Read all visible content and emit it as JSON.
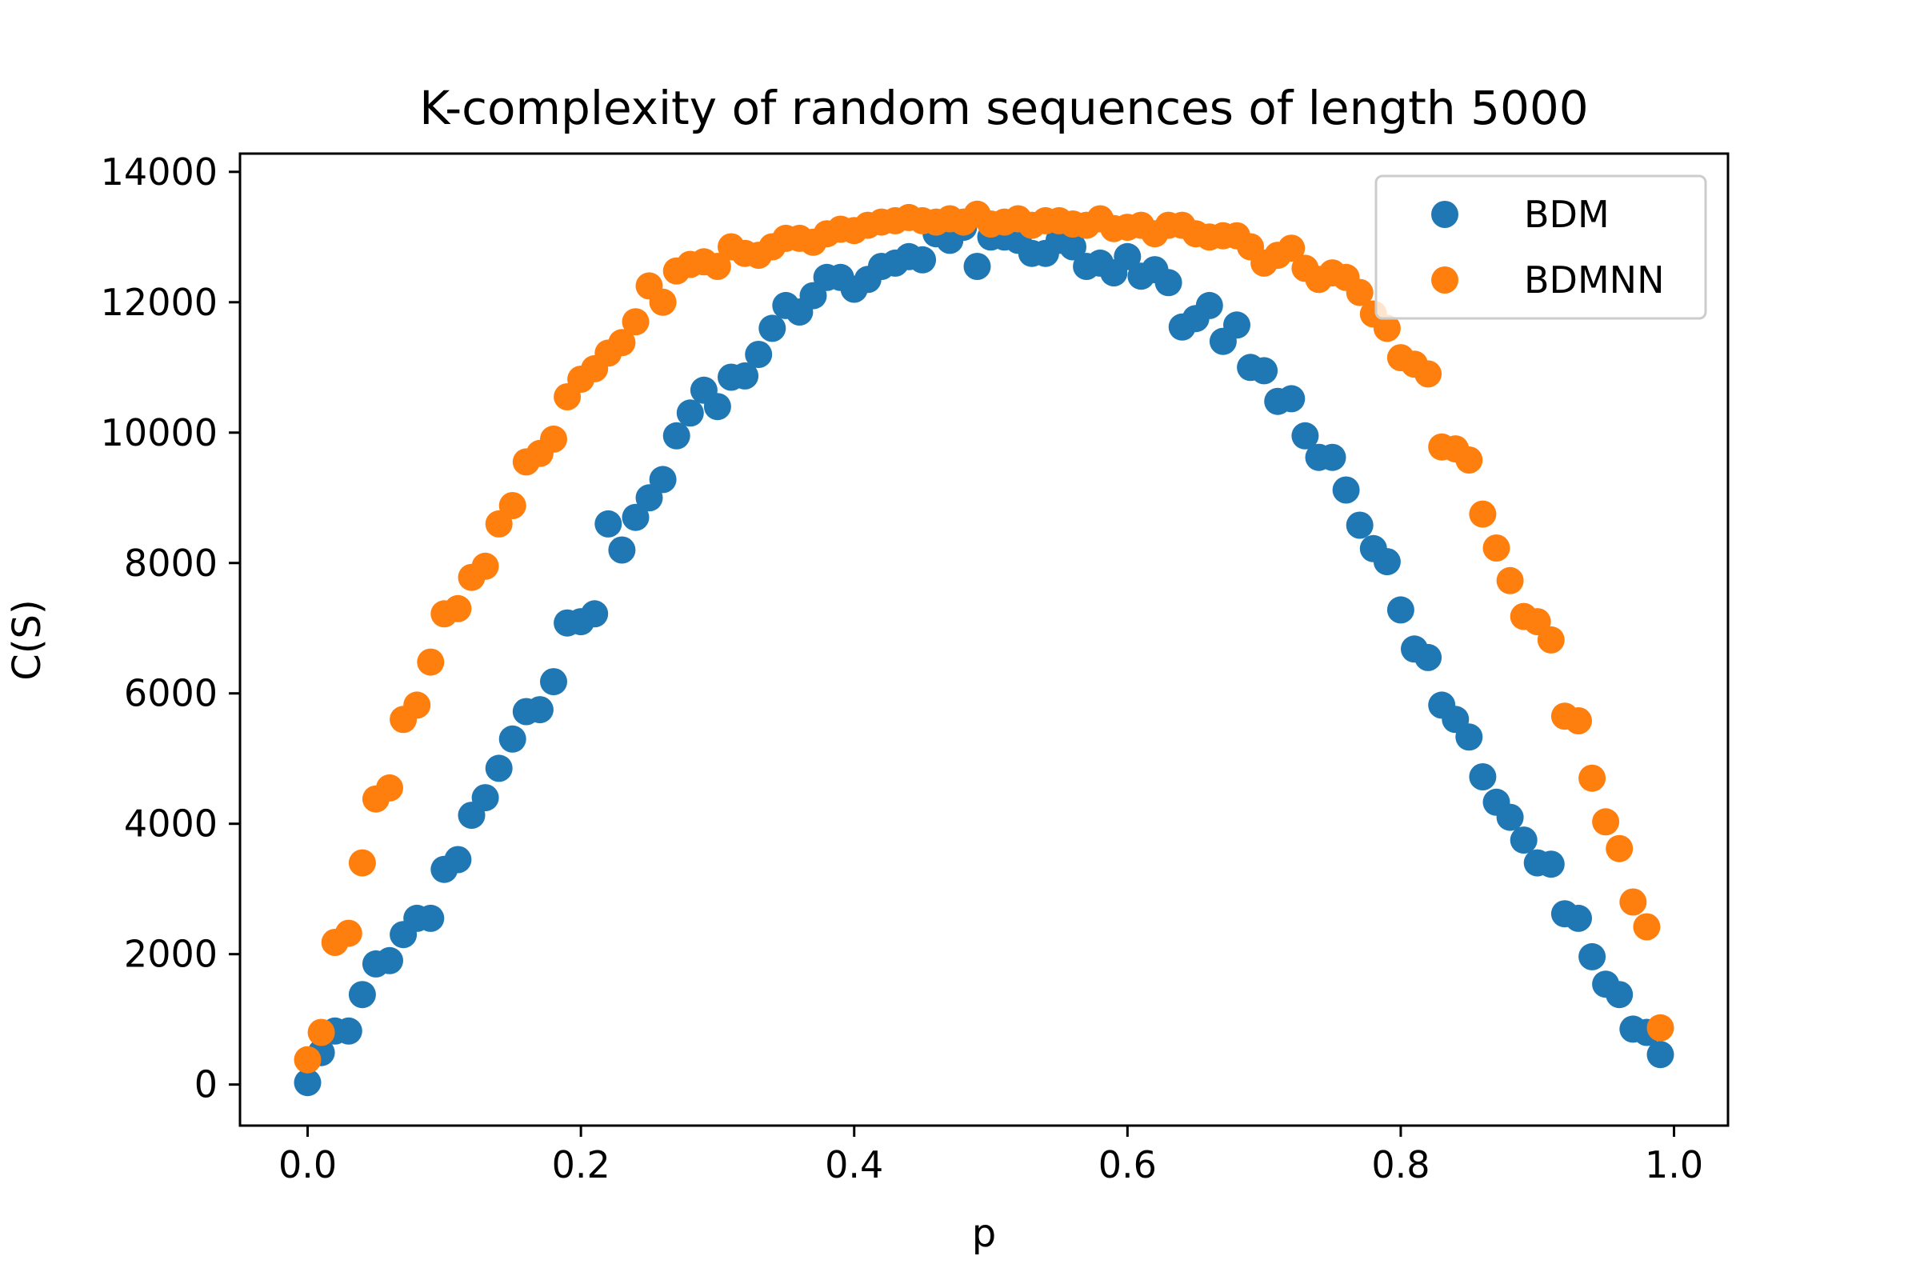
{
  "chart_data": {
    "type": "scatter",
    "title": "K-complexity of random sequences of length 5000",
    "xlabel": "p",
    "ylabel": "C(S)",
    "xlim": [
      -0.0495,
      1.0395
    ],
    "ylim": [
      -630,
      14280
    ],
    "xticks": [
      0.0,
      0.2,
      0.4,
      0.6,
      0.8,
      1.0
    ],
    "xtick_labels": [
      "0.0",
      "0.2",
      "0.4",
      "0.6",
      "0.8",
      "1.0"
    ],
    "yticks": [
      0,
      2000,
      4000,
      6000,
      8000,
      10000,
      12000,
      14000
    ],
    "ytick_labels": [
      "0",
      "2000",
      "4000",
      "6000",
      "8000",
      "10000",
      "12000",
      "14000"
    ],
    "grid": false,
    "legend_position": "top-right",
    "series": [
      {
        "name": "BDM",
        "color": "#1f77b4",
        "x": [
          0.0,
          0.01,
          0.02,
          0.03,
          0.04,
          0.05,
          0.06,
          0.07,
          0.08,
          0.09,
          0.1,
          0.11,
          0.12,
          0.13,
          0.14,
          0.15,
          0.16,
          0.17,
          0.18,
          0.19,
          0.2,
          0.21,
          0.22,
          0.23,
          0.24,
          0.25,
          0.26,
          0.27,
          0.28,
          0.29,
          0.3,
          0.31,
          0.32,
          0.33,
          0.34,
          0.35,
          0.36,
          0.37,
          0.38,
          0.39,
          0.4,
          0.41,
          0.42,
          0.43,
          0.44,
          0.45,
          0.46,
          0.47,
          0.48,
          0.49,
          0.5,
          0.51,
          0.52,
          0.53,
          0.54,
          0.55,
          0.56,
          0.57,
          0.58,
          0.59,
          0.6,
          0.61,
          0.62,
          0.63,
          0.64,
          0.65,
          0.66,
          0.67,
          0.68,
          0.69,
          0.7,
          0.71,
          0.72,
          0.73,
          0.74,
          0.75,
          0.76,
          0.77,
          0.78,
          0.79,
          0.8,
          0.81,
          0.82,
          0.83,
          0.84,
          0.85,
          0.86,
          0.87,
          0.88,
          0.89,
          0.9,
          0.91,
          0.92,
          0.93,
          0.94,
          0.95,
          0.96,
          0.97,
          0.98,
          0.99
        ],
        "y": [
          30,
          490,
          820,
          820,
          1380,
          1850,
          1900,
          2300,
          2550,
          2550,
          3300,
          3450,
          4130,
          4400,
          4850,
          5300,
          5720,
          5750,
          6180,
          7080,
          7100,
          7220,
          8600,
          8200,
          8700,
          9000,
          9280,
          9950,
          10300,
          10650,
          10400,
          10850,
          10870,
          11200,
          11600,
          11950,
          11850,
          12100,
          12380,
          12380,
          12200,
          12350,
          12550,
          12600,
          12700,
          12650,
          13050,
          12950,
          13150,
          12550,
          13000,
          13000,
          12950,
          12750,
          12750,
          12950,
          12850,
          12550,
          12600,
          12450,
          12700,
          12400,
          12500,
          12300,
          11620,
          11750,
          11950,
          11400,
          11650,
          11000,
          10950,
          10480,
          10520,
          9950,
          9620,
          9620,
          9120,
          8580,
          8220,
          8020,
          7280,
          6680,
          6550,
          5820,
          5600,
          5330,
          4720,
          4330,
          4100,
          3750,
          3400,
          3380,
          2620,
          2550,
          1960,
          1540,
          1380,
          850,
          800,
          460
        ]
      },
      {
        "name": "BDMNN",
        "color": "#ff7f0e",
        "x": [
          0.0,
          0.01,
          0.02,
          0.03,
          0.04,
          0.05,
          0.06,
          0.07,
          0.08,
          0.09,
          0.1,
          0.11,
          0.12,
          0.13,
          0.14,
          0.15,
          0.16,
          0.17,
          0.18,
          0.19,
          0.2,
          0.21,
          0.22,
          0.23,
          0.24,
          0.25,
          0.26,
          0.27,
          0.28,
          0.29,
          0.3,
          0.31,
          0.32,
          0.33,
          0.34,
          0.35,
          0.36,
          0.37,
          0.38,
          0.39,
          0.4,
          0.41,
          0.42,
          0.43,
          0.44,
          0.45,
          0.46,
          0.47,
          0.48,
          0.49,
          0.5,
          0.51,
          0.52,
          0.53,
          0.54,
          0.55,
          0.56,
          0.57,
          0.58,
          0.59,
          0.6,
          0.61,
          0.62,
          0.63,
          0.64,
          0.65,
          0.66,
          0.67,
          0.68,
          0.69,
          0.7,
          0.71,
          0.72,
          0.73,
          0.74,
          0.75,
          0.76,
          0.77,
          0.78,
          0.79,
          0.8,
          0.81,
          0.82,
          0.83,
          0.84,
          0.85,
          0.86,
          0.87,
          0.88,
          0.89,
          0.9,
          0.91,
          0.92,
          0.93,
          0.94,
          0.95,
          0.96,
          0.97,
          0.98,
          0.99
        ],
        "y": [
          380,
          800,
          2180,
          2320,
          3400,
          4380,
          4550,
          5600,
          5820,
          6480,
          7220,
          7300,
          7780,
          7950,
          8600,
          8880,
          9550,
          9680,
          9900,
          10550,
          10820,
          10980,
          11220,
          11380,
          11700,
          12250,
          12000,
          12480,
          12580,
          12620,
          12550,
          12850,
          12750,
          12720,
          12850,
          12980,
          12980,
          12920,
          13050,
          13120,
          13100,
          13180,
          13230,
          13250,
          13300,
          13250,
          13230,
          13280,
          13230,
          13350,
          13200,
          13230,
          13280,
          13180,
          13250,
          13250,
          13200,
          13180,
          13280,
          13130,
          13150,
          13180,
          13050,
          13180,
          13180,
          13050,
          13000,
          13020,
          13020,
          12850,
          12600,
          12720,
          12830,
          12520,
          12350,
          12450,
          12380,
          12150,
          11820,
          11600,
          11150,
          11050,
          10900,
          9780,
          9750,
          9580,
          8750,
          8230,
          7730,
          7180,
          7100,
          6820,
          5650,
          5580,
          4700,
          4030,
          3620,
          2800,
          2420,
          870
        ]
      }
    ]
  }
}
